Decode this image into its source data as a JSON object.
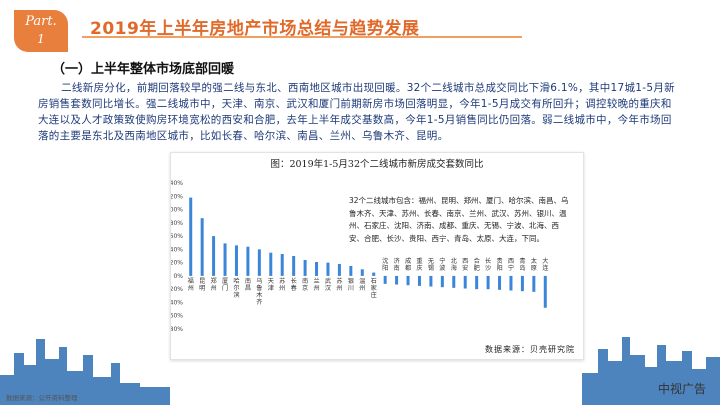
{
  "badge": {
    "line1": "Part.",
    "line2": "1"
  },
  "header": {
    "title": "2019年上半年房地产市场总结与趋势发展"
  },
  "section": {
    "title": "（一）上半年整体市场底部回暖"
  },
  "body_text": "二线新房分化，前期回落较早的强二线与东北、西南地区城市出现回暖。32个二线城市总成交同比下滑6.1%，其中17城1-5月新房销售套数同比增长。强二线城市中，天津、南京、武汉和厦门前期新房市场回落明显，今年1-5月成交有所回升；调控较晚的重庆和大连以及人才政策致使购房环境宽松的西安和合肥，去年上半年成交基数高，今年1-5月销售同比仍回落。弱二线城市中，今年市场回落的主要是东北及西南地区城市，比如长春、哈尔滨、南昌、兰州、乌鲁木齐、昆明。",
  "chart_data": {
    "type": "bar",
    "title": "图：2019年1-5月32个二线城市新房成交套数同比",
    "categories": [
      "福州",
      "昆明",
      "郑州",
      "厦门",
      "哈尔滨",
      "南昌",
      "乌鲁木齐",
      "天津",
      "苏州",
      "长春",
      "南京",
      "兰州",
      "武汉",
      "苏州",
      "银川",
      "温州",
      "石家庄",
      "沈阳",
      "济南",
      "成都",
      "重庆",
      "无锡",
      "宁波",
      "北海",
      "西安",
      "合肥",
      "长沙",
      "贵阳",
      "西宁",
      "青岛",
      "太原",
      "大连"
    ],
    "values": [
      118,
      87,
      60,
      49,
      46,
      44,
      40,
      35,
      33,
      30,
      24,
      21,
      20,
      18,
      15,
      10,
      5,
      -12,
      -13,
      -14,
      -15,
      -16,
      -17,
      -18,
      -19,
      -20,
      -20,
      -21,
      -22,
      -23,
      -24,
      -48
    ],
    "ylim": [
      -80,
      140
    ],
    "yticks": [
      "140%",
      "120%",
      "100%",
      "80%",
      "60%",
      "40%",
      "20%",
      "0%",
      "-20%",
      "-40%",
      "-60%",
      "-80%"
    ],
    "bar_color": "#3b86d8",
    "annotation": "32个二线城市包含：福州、昆明、郑州、厦门、哈尔滨、南昌、乌鲁木齐、天津、苏州、长春、南京、兰州、武汉、苏州、银川、温州、石家庄、沈阳、济南、成都、重庆、无锡、宁波、北海、西安、合肥、长沙、贵阳、西宁、青岛、太原、大连，下同。",
    "source": "数据来源：贝壳研究院"
  },
  "footer": {
    "note": "数据来源：公开资料整理"
  },
  "watermark": "中视广告",
  "colors": {
    "accent": "#e97f3c",
    "skyline": "#2f6fb3",
    "bar": "#3b86d8"
  }
}
